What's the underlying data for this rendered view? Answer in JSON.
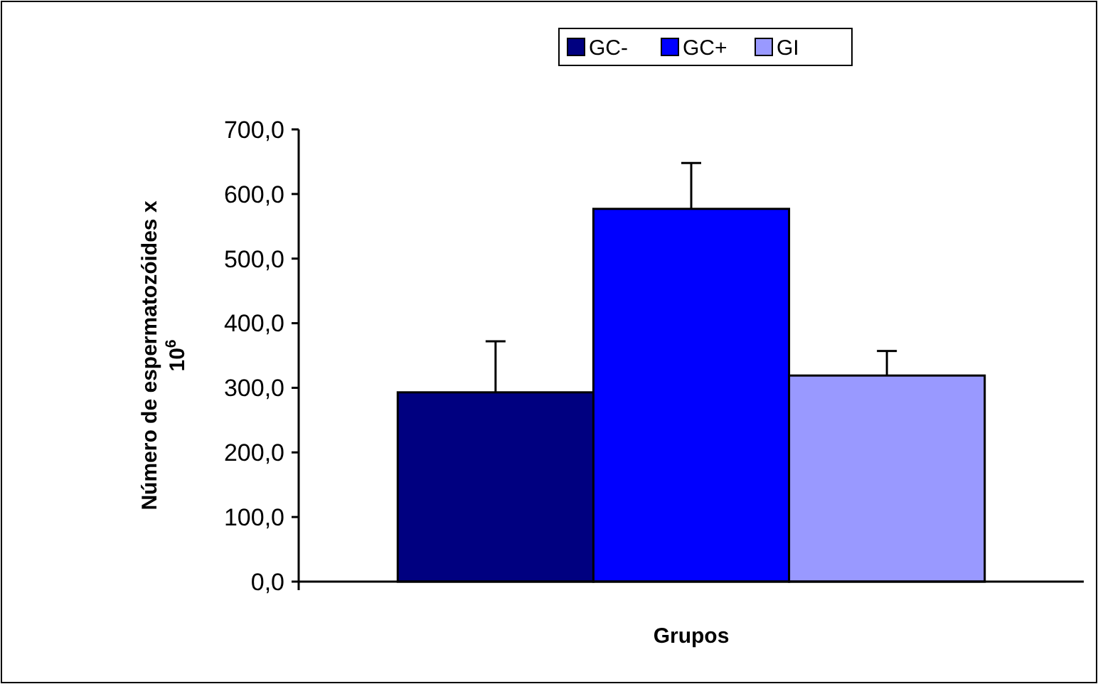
{
  "chart_data": {
    "type": "bar",
    "categories": [
      null
    ],
    "xlabel": "Grupos",
    "ylabel": "Número de espermatozóides x 10$^{6}$",
    "series": [
      {
        "name": "GC-",
        "color": "#000080",
        "values": [
          293
        ],
        "errors": [
          [
            293,
            372
          ]
        ]
      },
      {
        "name": "GC+",
        "color": "#0000ff",
        "values": [
          577
        ],
        "errors": [
          [
            577,
            648
          ]
        ]
      },
      {
        "name": "GI",
        "color": "#9999ff",
        "values": [
          319
        ],
        "errors": [
          [
            319,
            357
          ]
        ]
      }
    ],
    "ylim": [
      0,
      700
    ],
    "yticks": [
      {
        "value": 0,
        "label": "0,0"
      },
      {
        "value": 100,
        "label": "100,0"
      },
      {
        "value": 200,
        "label": "200,0"
      },
      {
        "value": 300,
        "label": "300,0"
      },
      {
        "value": 400,
        "label": "400,0"
      },
      {
        "value": 500,
        "label": "500,0"
      },
      {
        "value": 600,
        "label": "600,0"
      },
      {
        "value": 700,
        "label": "700,0"
      }
    ],
    "grid": false,
    "legend": "top"
  }
}
